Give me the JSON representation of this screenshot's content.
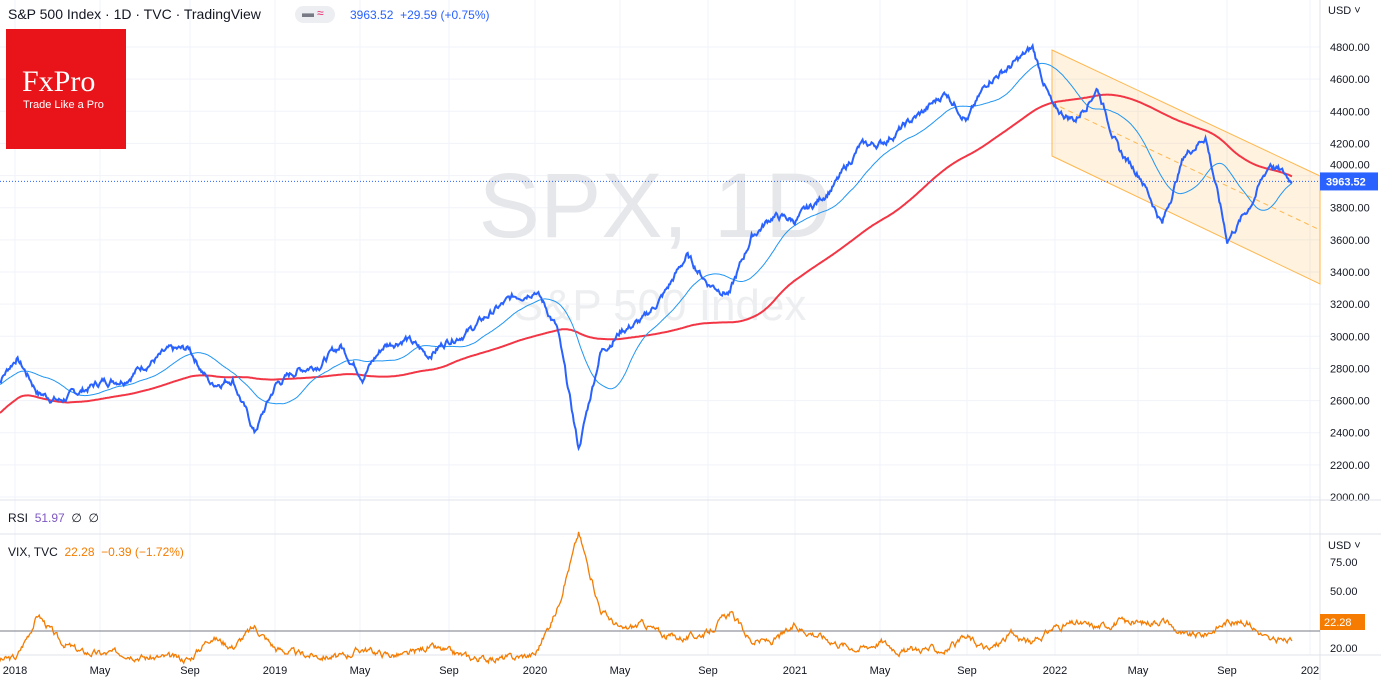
{
  "header": {
    "title": "S&P 500 Index · 1D · TVC · TradingView",
    "price": "3963.52",
    "change": "+29.59",
    "change_pct": "(+0.75%)",
    "currency": "USD"
  },
  "logo": {
    "brand": "FxPro",
    "tagline": "Trade Like a Pro"
  },
  "watermark": {
    "symbol": "SPX, 1D",
    "name": "S&P 500 Index"
  },
  "rsi": {
    "label": "RSI",
    "value": "51.97",
    "extra1": "∅",
    "extra2": "∅"
  },
  "vix": {
    "label": "VIX, TVC",
    "value": "22.28",
    "change": "−0.39",
    "change_pct": "(−1.72%)",
    "currency": "USD",
    "current_label": "22.28"
  },
  "colors": {
    "price": "#2962ff",
    "ma_fast": "#2196f3",
    "ma_slow": "#f23645",
    "vix": "#f57c00",
    "channel": "#ffb74d"
  },
  "chart_data": [
    {
      "type": "line",
      "title": "S&P 500 Index · 1D · TVC",
      "ylim": [
        2000,
        4800
      ],
      "y_ticks": [
        "4800.00",
        "4600.00",
        "4400.00",
        "4200.00",
        "4000.00",
        "3800.00",
        "3600.00",
        "3400.00",
        "3200.00",
        "3000.00",
        "2800.00",
        "2600.00",
        "2400.00",
        "2200.00",
        "2000.00"
      ],
      "x_ticks": [
        "2018",
        "May",
        "Sep",
        "2019",
        "May",
        "Sep",
        "2020",
        "May",
        "Sep",
        "2021",
        "May",
        "Sep",
        "2022",
        "May",
        "Sep",
        "202"
      ],
      "last_value_label": "3963.52",
      "x": [
        "2017-12",
        "2018-01",
        "2018-02",
        "2018-03",
        "2018-04",
        "2018-05",
        "2018-06",
        "2018-07",
        "2018-08",
        "2018-09",
        "2018-10",
        "2018-11",
        "2018-12",
        "2019-01",
        "2019-02",
        "2019-03",
        "2019-04",
        "2019-05",
        "2019-06",
        "2019-07",
        "2019-08",
        "2019-09",
        "2019-10",
        "2019-11",
        "2019-12",
        "2020-01",
        "2020-02",
        "2020-03",
        "2020-04",
        "2020-05",
        "2020-06",
        "2020-07",
        "2020-08",
        "2020-09",
        "2020-10",
        "2020-11",
        "2020-12",
        "2021-01",
        "2021-02",
        "2021-03",
        "2021-04",
        "2021-05",
        "2021-06",
        "2021-07",
        "2021-08",
        "2021-09",
        "2021-10",
        "2021-11",
        "2021-12",
        "2022-01",
        "2022-02",
        "2022-03",
        "2022-04",
        "2022-05",
        "2022-06",
        "2022-07",
        "2022-08",
        "2022-09",
        "2022-10",
        "2022-11",
        "2022-12"
      ],
      "series": [
        {
          "values": [
            2690,
            2870,
            2650,
            2600,
            2660,
            2720,
            2740,
            2830,
            2900,
            2920,
            2700,
            2740,
            2400,
            2700,
            2790,
            2830,
            2940,
            2760,
            2940,
            2990,
            2880,
            2980,
            3040,
            3150,
            3240,
            3300,
            3050,
            2300,
            2900,
            3040,
            3100,
            3270,
            3500,
            3330,
            3270,
            3620,
            3750,
            3720,
            3830,
            3970,
            4180,
            4200,
            4300,
            4400,
            4520,
            4350,
            4600,
            4680,
            4790,
            4400,
            4350,
            4550,
            4150,
            4000,
            3700,
            4120,
            4250,
            3600,
            3800,
            4080,
            3963.52
          ]
        }
      ],
      "overlays": [
        "MA50",
        "MA200",
        "descending channel"
      ]
    },
    {
      "type": "line",
      "title": "VIX, TVC",
      "ylim": [
        0,
        80
      ],
      "y_ticks": [
        "75.00",
        "50.00",
        "20.00"
      ],
      "series": [
        {
          "values": [
            11,
            13,
            37,
            22,
            16,
            15,
            16,
            13,
            13,
            12,
            25,
            19,
            30,
            18,
            15,
            14,
            13,
            18,
            15,
            14,
            19,
            16,
            13,
            12,
            13,
            15,
            40,
            82,
            40,
            28,
            32,
            25,
            24,
            27,
            38,
            22,
            22,
            30,
            26,
            21,
            18,
            22,
            16,
            18,
            17,
            24,
            17,
            26,
            21,
            30,
            32,
            30,
            33,
            32,
            34,
            25,
            26,
            33,
            32,
            22,
            22.28
          ]
        }
      ]
    }
  ]
}
